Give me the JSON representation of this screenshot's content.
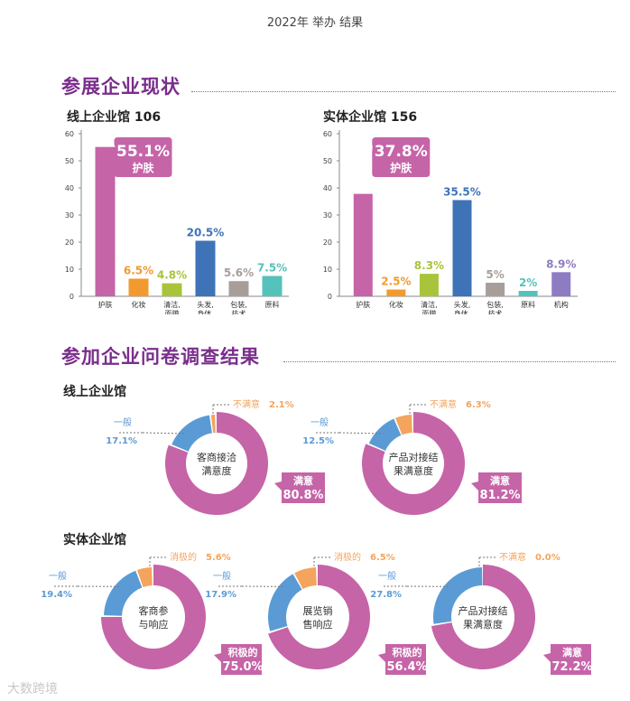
{
  "header": "2022年 举办 结果",
  "sections": {
    "exhibitors": "参展企业现状",
    "survey": "参加企业问卷调查结果",
    "online_hall": "线上企业馆",
    "physical_hall": "实体企业馆"
  },
  "chart_data": [
    {
      "type": "bar",
      "title": "线上企业馆 106",
      "ylim": [
        0,
        60
      ],
      "yticks": [
        0,
        10,
        20,
        30,
        40,
        50,
        60
      ],
      "categories": [
        "护肤",
        "化妆",
        "清洁,\n面膜",
        "头发,\n身体,\n美学",
        "包装,\n技术",
        "原料"
      ],
      "values": [
        55.1,
        6.5,
        4.8,
        20.5,
        5.6,
        7.5
      ],
      "labels": [
        "55.1%",
        "6.5%",
        "4.8%",
        "20.5%",
        "5.6%",
        "7.5%"
      ],
      "colors": [
        "#c664a8",
        "#f29a2e",
        "#a8c43a",
        "#3e73b8",
        "#a89e99",
        "#56c2bc"
      ],
      "callout": {
        "value": "55.1%",
        "name": "护肤"
      }
    },
    {
      "type": "bar",
      "title": "实体企业馆 156",
      "ylim": [
        0,
        60
      ],
      "yticks": [
        0,
        10,
        20,
        30,
        40,
        50,
        60
      ],
      "categories": [
        "护肤",
        "化妆",
        "清洁,\n面膜",
        "头发,\n身体,\n美学",
        "包装,\n技术",
        "原料",
        "机构"
      ],
      "values": [
        37.8,
        2.5,
        8.3,
        35.5,
        5,
        2,
        8.9
      ],
      "labels": [
        "37.8%",
        "2.5%",
        "8.3%",
        "35.5%",
        "5%",
        "2%",
        "8.9%"
      ],
      "colors": [
        "#c664a8",
        "#f29a2e",
        "#a8c43a",
        "#3e73b8",
        "#a89e99",
        "#56c2bc",
        "#8e7cc3"
      ],
      "callout": {
        "value": "37.8%",
        "name": "护肤"
      }
    },
    {
      "type": "pie",
      "center": [
        "客商接洽",
        "满意度"
      ],
      "slices": [
        {
          "name": "满意",
          "value": 80.8,
          "label": "80.8%",
          "color": "#c664a8"
        },
        {
          "name": "一般",
          "value": 17.1,
          "label": "17.1%",
          "color": "#5b9bd5"
        },
        {
          "name": "不满意",
          "value": 2.1,
          "label": "2.1%",
          "color": "#f4a45c"
        }
      ]
    },
    {
      "type": "pie",
      "center": [
        "产品对接结",
        "果满意度"
      ],
      "slices": [
        {
          "name": "满意",
          "value": 81.2,
          "label": "81.2%",
          "color": "#c664a8"
        },
        {
          "name": "一般",
          "value": 12.5,
          "label": "12.5%",
          "color": "#5b9bd5"
        },
        {
          "name": "不满意",
          "value": 6.3,
          "label": "6.3%",
          "color": "#f4a45c"
        }
      ]
    },
    {
      "type": "pie",
      "center": [
        "客商参",
        "与响应"
      ],
      "slices": [
        {
          "name": "积极的",
          "value": 75.0,
          "label": "75.0%",
          "color": "#c664a8"
        },
        {
          "name": "一般",
          "value": 19.4,
          "label": "19.4%",
          "color": "#5b9bd5"
        },
        {
          "name": "消极的",
          "value": 5.6,
          "label": "5.6%",
          "color": "#f4a45c"
        }
      ]
    },
    {
      "type": "pie",
      "center": [
        "展览销",
        "售响应"
      ],
      "slices": [
        {
          "name": "积极的",
          "value": 56.4,
          "label": "56.4%",
          "color": "#c664a8"
        },
        {
          "name": "一般",
          "value": 17.9,
          "label": "17.9%",
          "color": "#5b9bd5"
        },
        {
          "name": "消极的",
          "value": 6.5,
          "label": "6.5%",
          "color": "#f4a45c"
        }
      ]
    },
    {
      "type": "pie",
      "center": [
        "产品对接结",
        "果满意度"
      ],
      "slices": [
        {
          "name": "满意",
          "value": 72.2,
          "label": "72.2%",
          "color": "#c664a8"
        },
        {
          "name": "一般",
          "value": 27.8,
          "label": "27.8%",
          "color": "#5b9bd5"
        },
        {
          "name": "不满意",
          "value": 0.0,
          "label": "0.0%",
          "color": "#f4a45c"
        }
      ]
    }
  ],
  "watermark": "大数跨境"
}
